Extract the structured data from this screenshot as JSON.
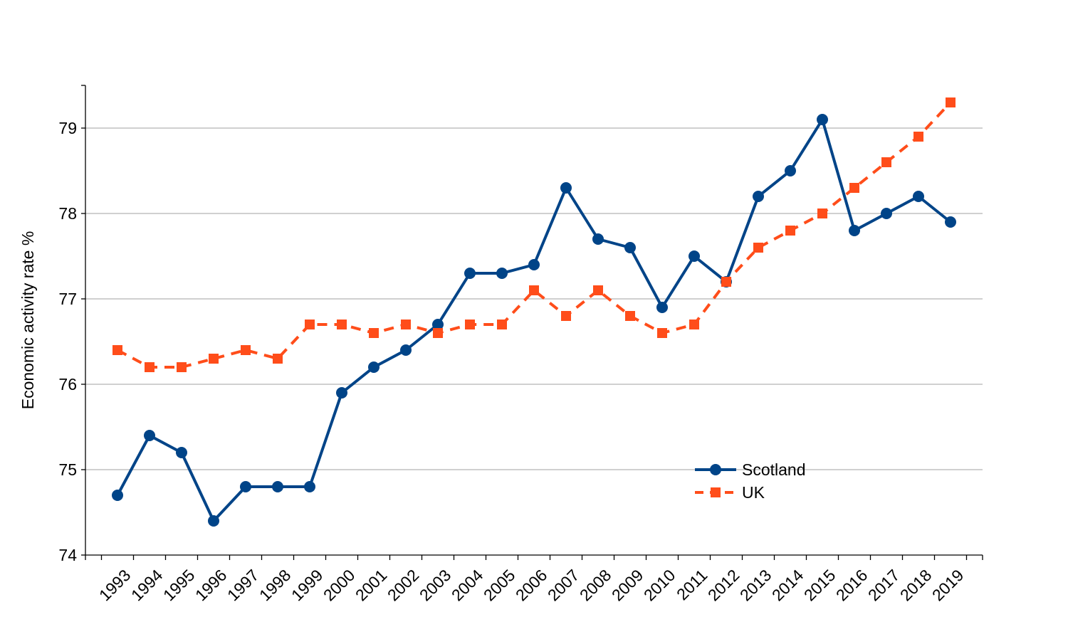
{
  "chart_data": {
    "type": "line",
    "title": "",
    "xlabel": "",
    "ylabel": "Economic activity rate %",
    "ylim": [
      74,
      79.5
    ],
    "yticks": [
      74,
      75,
      76,
      77,
      78,
      79
    ],
    "grid": "horizontal",
    "legend_position": "lower-right",
    "categories": [
      "1993",
      "1994",
      "1995",
      "1996",
      "1997",
      "1998",
      "1999",
      "2000",
      "2001",
      "2002",
      "2003",
      "2004",
      "2005",
      "2006",
      "2007",
      "2008",
      "2009",
      "2010",
      "2011",
      "2012",
      "2013",
      "2014",
      "2015",
      "2016",
      "2017",
      "2018",
      "2019"
    ],
    "series": [
      {
        "name": "Scotland",
        "color": "#004488",
        "marker": "circle",
        "line": "solid",
        "values": [
          74.7,
          75.4,
          75.2,
          74.4,
          74.8,
          74.8,
          74.8,
          75.9,
          76.2,
          76.4,
          76.7,
          77.3,
          77.3,
          77.4,
          78.3,
          77.7,
          77.6,
          76.9,
          77.5,
          77.2,
          78.2,
          78.5,
          79.1,
          77.8,
          78.0,
          78.2,
          77.9
        ]
      },
      {
        "name": "UK",
        "color": "#FF4D1A",
        "marker": "square",
        "line": "dashed",
        "values": [
          76.4,
          76.2,
          76.2,
          76.3,
          76.4,
          76.3,
          76.7,
          76.7,
          76.6,
          76.7,
          76.6,
          76.7,
          76.7,
          77.1,
          76.8,
          77.1,
          76.8,
          76.6,
          76.7,
          77.2,
          77.6,
          77.8,
          78.0,
          78.3,
          78.6,
          78.9,
          79.3
        ]
      }
    ]
  }
}
